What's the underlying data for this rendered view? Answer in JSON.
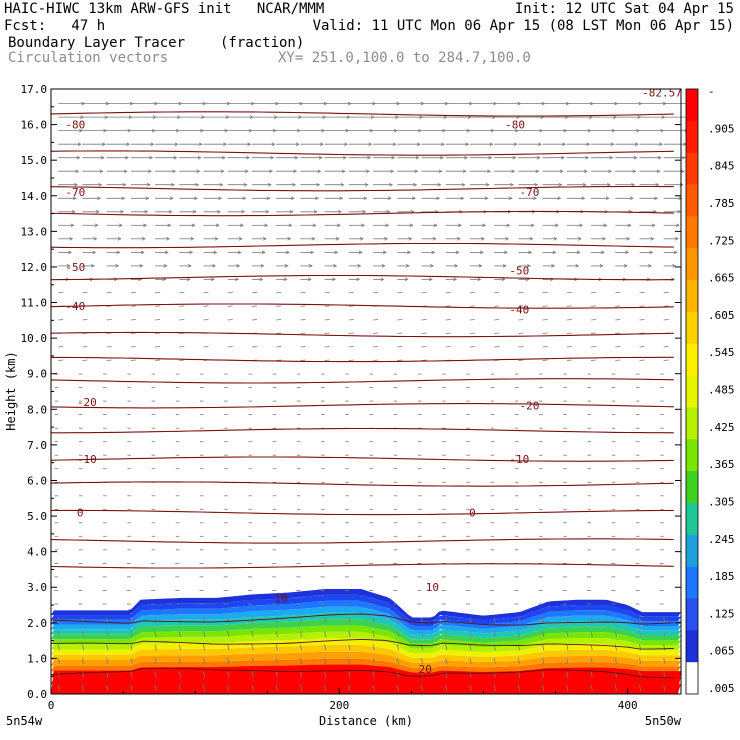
{
  "header": {
    "line1_left": "HAIC-HIWC 13km ARW-GFS init   NCAR/MMM",
    "line1_right": "Init: 12 UTC Sat 04 Apr 15",
    "line2_left": "Fcst:   47 h",
    "line2_right": "Valid: 11 UTC Mon 06 Apr 15 (08 LST Mon 06 Apr 15)",
    "field_name": "Boundary Layer Tracer",
    "field_units": "(fraction)",
    "vector_name": "Circulation vectors",
    "xsec_coords": "XY= 251.0,100.0 to 284.7,100.0"
  },
  "chart_data": {
    "type": "cross-section",
    "ylabel": "Height (km)",
    "xlabel": "Distance (km)",
    "xlim": [
      0,
      437
    ],
    "ylim": [
      0,
      17
    ],
    "y_ticks": [
      "0.0",
      "1.0",
      "2.0",
      "3.0",
      "4.0",
      "5.0",
      "6.0",
      "7.0",
      "8.0",
      "9.0",
      "10.0",
      "11.0",
      "12.0",
      "13.0",
      "14.0",
      "15.0",
      "16.0",
      "17.0"
    ],
    "x_ticks": [
      {
        "value": 0,
        "label": "0"
      },
      {
        "value": 200,
        "label": "200"
      },
      {
        "value": 400,
        "label": "400"
      }
    ],
    "x_end_labels": {
      "left": "5n54w",
      "right": "5n50w"
    },
    "colorbar": {
      "labels": [
        "-",
        ".905",
        ".845",
        ".785",
        ".725",
        ".665",
        ".605",
        ".545",
        ".485",
        ".425",
        ".365",
        ".305",
        ".245",
        ".185",
        ".125",
        ".065",
        ".005"
      ],
      "colors": [
        "#ff0000",
        "#ff1a00",
        "#ff3c00",
        "#ff5a00",
        "#ff7800",
        "#ff9600",
        "#ffb400",
        "#ffd200",
        "#fff000",
        "#e6f500",
        "#b4f000",
        "#78e600",
        "#3cd21e",
        "#1ec896",
        "#1ea0dc",
        "#1e78ff",
        "#2850f0",
        "#1e32dc",
        "#ffffff"
      ]
    },
    "contour_labels": [
      {
        "x": 10,
        "y": 16.0,
        "label": "-80"
      },
      {
        "x": 315,
        "y": 16.0,
        "label": "-80"
      },
      {
        "x": 10,
        "y": 14.1,
        "label": "-70"
      },
      {
        "x": 325,
        "y": 14.1,
        "label": "-70"
      },
      {
        "x": 10,
        "y": 12.0,
        "label": "-50"
      },
      {
        "x": 318,
        "y": 11.9,
        "label": "-50"
      },
      {
        "x": 10,
        "y": 10.9,
        "label": "-40"
      },
      {
        "x": 318,
        "y": 10.8,
        "label": "-40"
      },
      {
        "x": 18,
        "y": 8.2,
        "label": "-20"
      },
      {
        "x": 325,
        "y": 8.1,
        "label": "-20"
      },
      {
        "x": 18,
        "y": 6.6,
        "label": "-10"
      },
      {
        "x": 318,
        "y": 6.6,
        "label": "-10"
      },
      {
        "x": 18,
        "y": 5.1,
        "label": "0"
      },
      {
        "x": 290,
        "y": 5.1,
        "label": "0"
      },
      {
        "x": 260,
        "y": 3.0,
        "label": "10"
      },
      {
        "x": 155,
        "y": 2.7,
        "label": "10"
      },
      {
        "x": 255,
        "y": 0.7,
        "label": "20"
      },
      {
        "x": 410,
        "y": 16.9,
        "label": "-82.57"
      }
    ],
    "isotherm_heights_km": [
      16.3,
      15.2,
      14.2,
      13.5,
      12.6,
      11.7,
      10.9,
      10.1,
      9.4,
      8.8,
      8.1,
      7.4,
      6.6,
      5.9,
      5.1,
      4.3,
      3.6
    ],
    "tracer_top_km": [
      [
        0,
        2.35
      ],
      [
        20,
        2.35
      ],
      [
        55,
        2.35
      ],
      [
        62,
        2.65
      ],
      [
        90,
        2.7
      ],
      [
        115,
        2.7
      ],
      [
        140,
        2.8
      ],
      [
        165,
        2.85
      ],
      [
        190,
        2.95
      ],
      [
        215,
        2.95
      ],
      [
        235,
        2.7
      ],
      [
        250,
        2.15
      ],
      [
        265,
        2.15
      ],
      [
        270,
        2.35
      ],
      [
        300,
        2.2
      ],
      [
        325,
        2.3
      ],
      [
        345,
        2.6
      ],
      [
        365,
        2.65
      ],
      [
        385,
        2.65
      ],
      [
        400,
        2.5
      ],
      [
        410,
        2.3
      ],
      [
        437,
        2.3
      ]
    ]
  }
}
